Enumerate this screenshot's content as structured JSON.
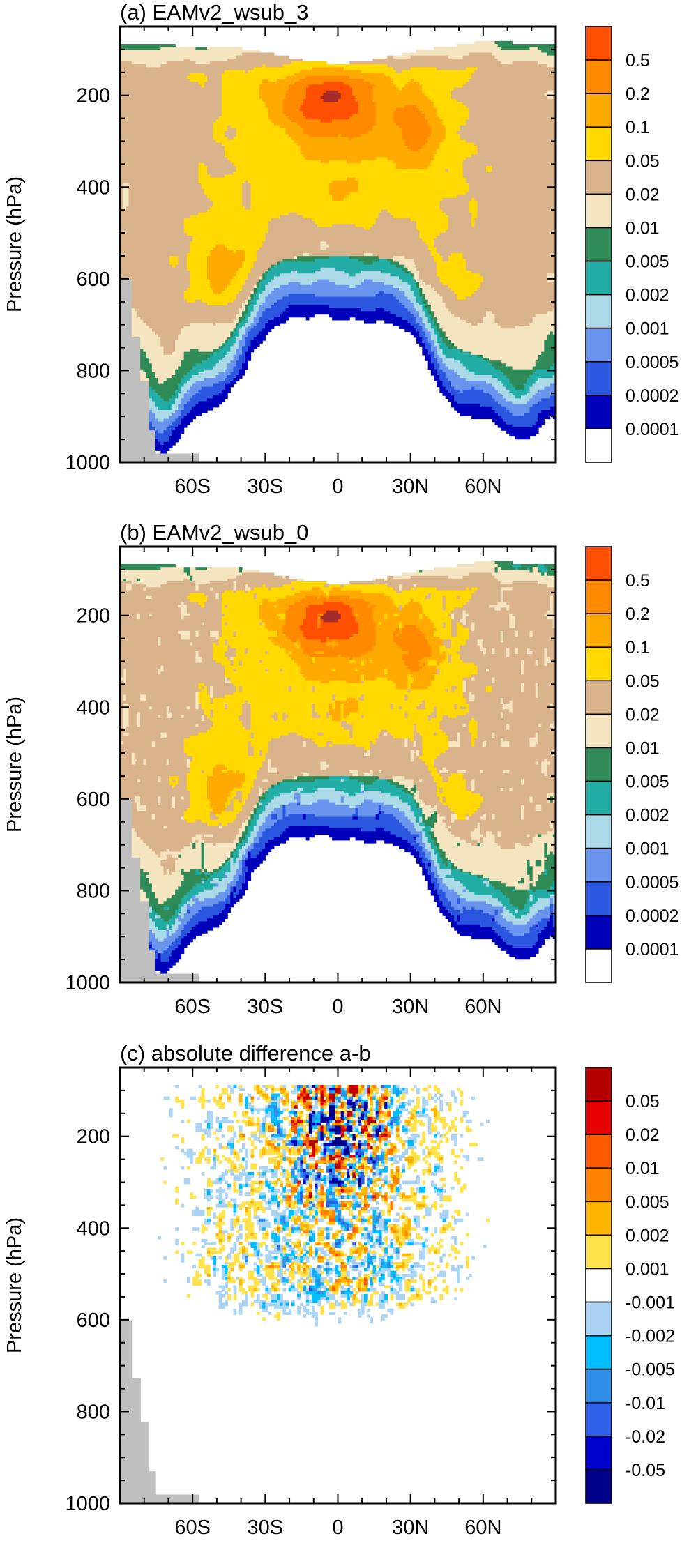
{
  "colors": {
    "terrain": "#bfbfbf",
    "seq_palette": [
      "#ffffff",
      "#0000bb",
      "#2b57e0",
      "#6a95ef",
      "#acd9e8",
      "#22aea6",
      "#2e8b57",
      "#f5e4c0",
      "#d9b38c",
      "#ffd900",
      "#ffaa00",
      "#ff8a00",
      "#ff4f00",
      "#a52a2a"
    ],
    "div_palette": [
      "#00008b",
      "#0000cd",
      "#2d5fe8",
      "#2e8ee8",
      "#00bfff",
      "#aad3f4",
      "#ffffff",
      "#ffe14c",
      "#ffb400",
      "#ff8200",
      "#ff5a00",
      "#e60000",
      "#b40000",
      "#8b1a1a"
    ]
  },
  "chart_data": [
    {
      "type": "heatmap",
      "panel": "a",
      "title": "(a) EAMv2_wsub_3",
      "ylabel": "Pressure (hPa)",
      "xlabel": "",
      "xlim": [
        -90,
        90
      ],
      "ylim": [
        1000,
        50
      ],
      "xticks": [
        -60,
        -30,
        0,
        30,
        60
      ],
      "xtick_labels": [
        "60S",
        "30S",
        "0",
        "30N",
        "60N"
      ],
      "yticks": [
        200,
        400,
        600,
        800,
        1000
      ],
      "ytick_labels": [
        "200",
        "400",
        "600",
        "800",
        "1000"
      ],
      "colorbar_levels": [
        "0.5",
        "0.2",
        "0.1",
        "0.05",
        "0.02",
        "0.01",
        "0.005",
        "0.002",
        "0.001",
        "0.0005",
        "0.0002",
        "0.0001"
      ],
      "palette": "seq",
      "field_case": 0
    },
    {
      "type": "heatmap",
      "panel": "b",
      "title": "(b) EAMv2_wsub_0",
      "ylabel": "Pressure (hPa)",
      "xlabel": "",
      "xlim": [
        -90,
        90
      ],
      "ylim": [
        1000,
        50
      ],
      "xticks": [
        -60,
        -30,
        0,
        30,
        60
      ],
      "xtick_labels": [
        "60S",
        "30S",
        "0",
        "30N",
        "60N"
      ],
      "yticks": [
        200,
        400,
        600,
        800,
        1000
      ],
      "ytick_labels": [
        "200",
        "400",
        "600",
        "800",
        "1000"
      ],
      "colorbar_levels": [
        "0.5",
        "0.2",
        "0.1",
        "0.05",
        "0.02",
        "0.01",
        "0.005",
        "0.002",
        "0.001",
        "0.0005",
        "0.0002",
        "0.0001"
      ],
      "palette": "seq",
      "field_case": 1
    },
    {
      "type": "heatmap",
      "panel": "c",
      "title": "(c) absolute difference a-b",
      "ylabel": "Pressure (hPa)",
      "xlabel": "",
      "xlim": [
        -90,
        90
      ],
      "ylim": [
        1000,
        50
      ],
      "xticks": [
        -60,
        -30,
        0,
        30,
        60
      ],
      "xtick_labels": [
        "60S",
        "30S",
        "0",
        "30N",
        "60N"
      ],
      "yticks": [
        200,
        400,
        600,
        800,
        1000
      ],
      "ytick_labels": [
        "200",
        "400",
        "600",
        "800",
        "1000"
      ],
      "colorbar_levels": [
        "0.05",
        "0.02",
        "0.01",
        "0.005",
        "0.002",
        "0.001",
        "-0.001",
        "-0.002",
        "-0.005",
        "-0.01",
        "-0.02",
        "-0.05"
      ],
      "palette": "div",
      "field_case": 2
    }
  ]
}
